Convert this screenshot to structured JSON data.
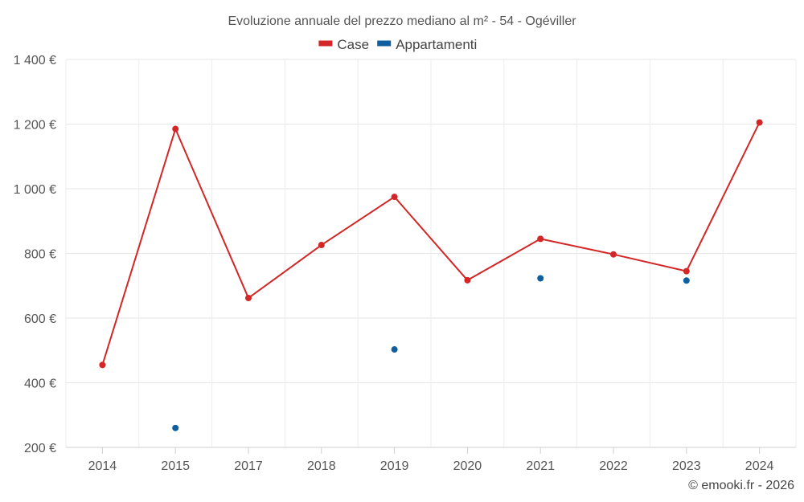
{
  "chart_data": {
    "type": "line",
    "title": "Evoluzione annuale del prezzo mediano al m² - 54 - Ogéviller",
    "categories": [
      "2014",
      "2015",
      "2017",
      "2018",
      "2019",
      "2020",
      "2021",
      "2022",
      "2023",
      "2024"
    ],
    "series": [
      {
        "name": "Case",
        "color": "#d32727",
        "style": "line",
        "values": [
          455,
          1185,
          662,
          826,
          975,
          717,
          845,
          797,
          745,
          1205
        ]
      },
      {
        "name": "Appartamenti",
        "color": "#0e5fa0",
        "style": "scatter",
        "values": [
          null,
          260,
          null,
          null,
          503,
          null,
          723,
          null,
          716,
          null
        ]
      }
    ],
    "ylim": [
      200,
      1400
    ],
    "yticks": [
      200,
      400,
      600,
      800,
      1000,
      1200,
      1400
    ],
    "ytick_labels": [
      "200 €",
      "400 €",
      "600 €",
      "800 €",
      "1 000 €",
      "1 200 €",
      "1 400 €"
    ],
    "grid": true,
    "legend_position": "top-center",
    "xlabel": "",
    "ylabel": ""
  },
  "credit": "© emooki.fr - 2026"
}
